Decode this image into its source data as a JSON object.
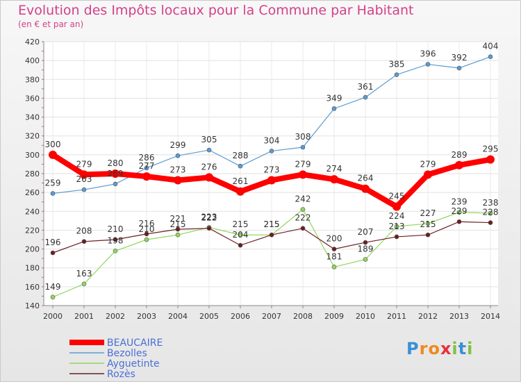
{
  "header": {
    "title": "Evolution des Impôts locaux pour la Commune par Habitant",
    "subtitle": "(en € et par an)"
  },
  "logo": {
    "text": "Proxiti",
    "letters": [
      "P",
      "r",
      "o",
      "x",
      "i",
      "t",
      "i"
    ],
    "colors": [
      "#3a8fd6",
      "#f08a1c",
      "#f08a1c",
      "#e8303a",
      "#7cc242",
      "#3a8fd6",
      "#7cc242"
    ]
  },
  "chart_data": {
    "type": "line",
    "title": "Evolution des Impôts locaux pour la Commune par Habitant",
    "subtitle": "(en € et par an)",
    "xlabel": "",
    "ylabel": "",
    "ylim": [
      140,
      420
    ],
    "yticks": [
      140,
      160,
      180,
      200,
      220,
      240,
      260,
      280,
      300,
      320,
      340,
      360,
      380,
      400,
      420
    ],
    "grid": true,
    "legend_position": "bottom-left",
    "x": [
      "2000",
      "2001",
      "2002",
      "2003",
      "2004",
      "2005",
      "2006",
      "2007",
      "2008",
      "2009",
      "2010",
      "2011",
      "2012",
      "2013",
      "2014"
    ],
    "series": [
      {
        "name": "BEAUCAIRE",
        "color": "#ff0000",
        "emphasis": true,
        "values": [
          300,
          279,
          280,
          277,
          273,
          276,
          261,
          273,
          279,
          274,
          264,
          245,
          279,
          289,
          295
        ]
      },
      {
        "name": "Bezolles",
        "color": "#5b9bd0",
        "emphasis": false,
        "values": [
          259,
          263,
          269,
          286,
          299,
          305,
          288,
          304,
          308,
          349,
          361,
          385,
          396,
          392,
          404
        ]
      },
      {
        "name": "Ayguetinte",
        "color": "#93d65e",
        "emphasis": false,
        "values": [
          149,
          163,
          198,
          210,
          215,
          223,
          215,
          215,
          242,
          181,
          189,
          224,
          227,
          239,
          238
        ]
      },
      {
        "name": "Rozès",
        "color": "#6b1e20",
        "emphasis": false,
        "values": [
          196,
          208,
          210,
          216,
          221,
          222,
          204,
          215,
          222,
          200,
          207,
          213,
          215,
          229,
          228
        ]
      }
    ]
  }
}
